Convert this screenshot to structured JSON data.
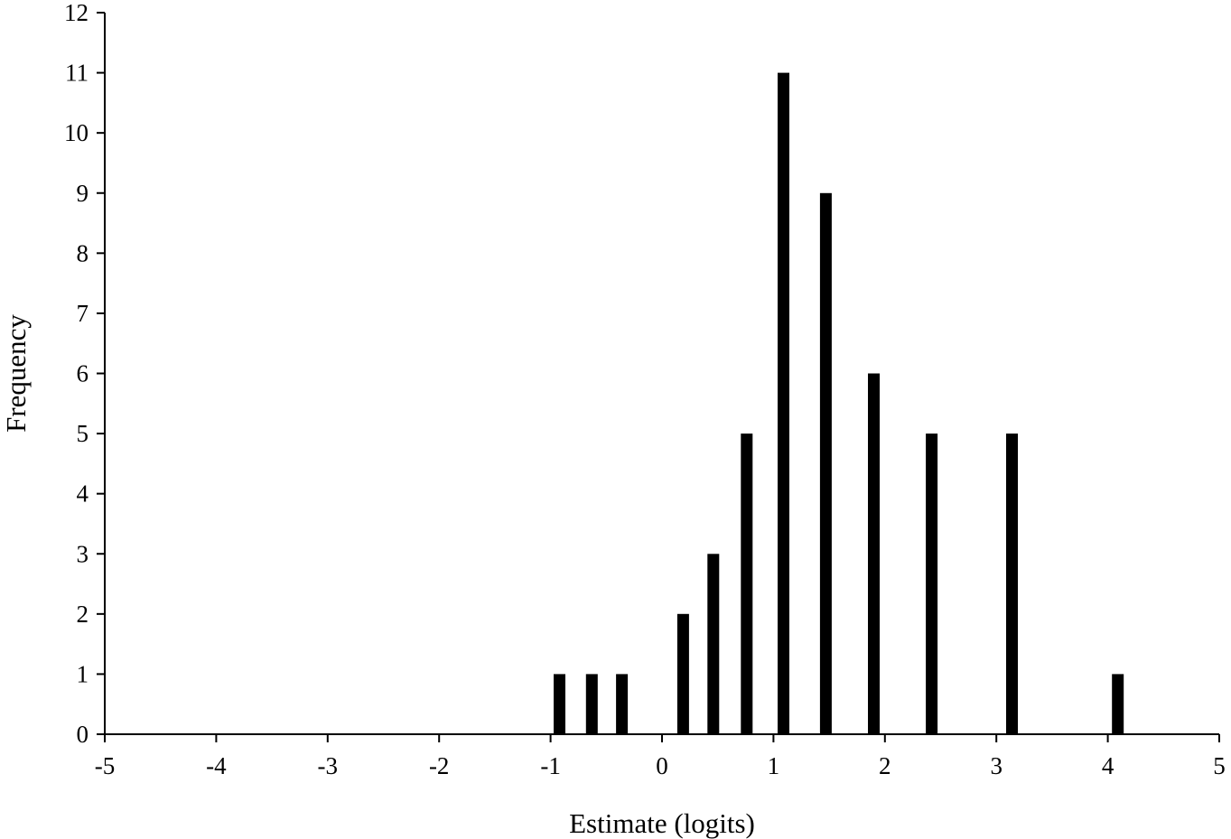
{
  "chart_data": {
    "type": "bar",
    "title": "",
    "xlabel": "Estimate (logits)",
    "ylabel": "Frequency",
    "xlim": [
      -5,
      5
    ],
    "ylim": [
      0,
      12
    ],
    "x_ticks": [
      -5,
      -4,
      -3,
      -2,
      -1,
      0,
      1,
      2,
      3,
      4,
      5
    ],
    "y_ticks": [
      0,
      1,
      2,
      3,
      4,
      5,
      6,
      7,
      8,
      9,
      10,
      11,
      12
    ],
    "grid": false,
    "legend": "none",
    "bar_color": "#000000",
    "series": [
      {
        "points": [
          {
            "x": -0.92,
            "y": 1
          },
          {
            "x": -0.63,
            "y": 1
          },
          {
            "x": -0.36,
            "y": 1
          },
          {
            "x": 0.19,
            "y": 2
          },
          {
            "x": 0.46,
            "y": 3
          },
          {
            "x": 0.76,
            "y": 5
          },
          {
            "x": 1.09,
            "y": 11
          },
          {
            "x": 1.47,
            "y": 9
          },
          {
            "x": 1.9,
            "y": 6
          },
          {
            "x": 2.42,
            "y": 5
          },
          {
            "x": 3.14,
            "y": 5
          },
          {
            "x": 4.09,
            "y": 1
          }
        ]
      }
    ]
  }
}
